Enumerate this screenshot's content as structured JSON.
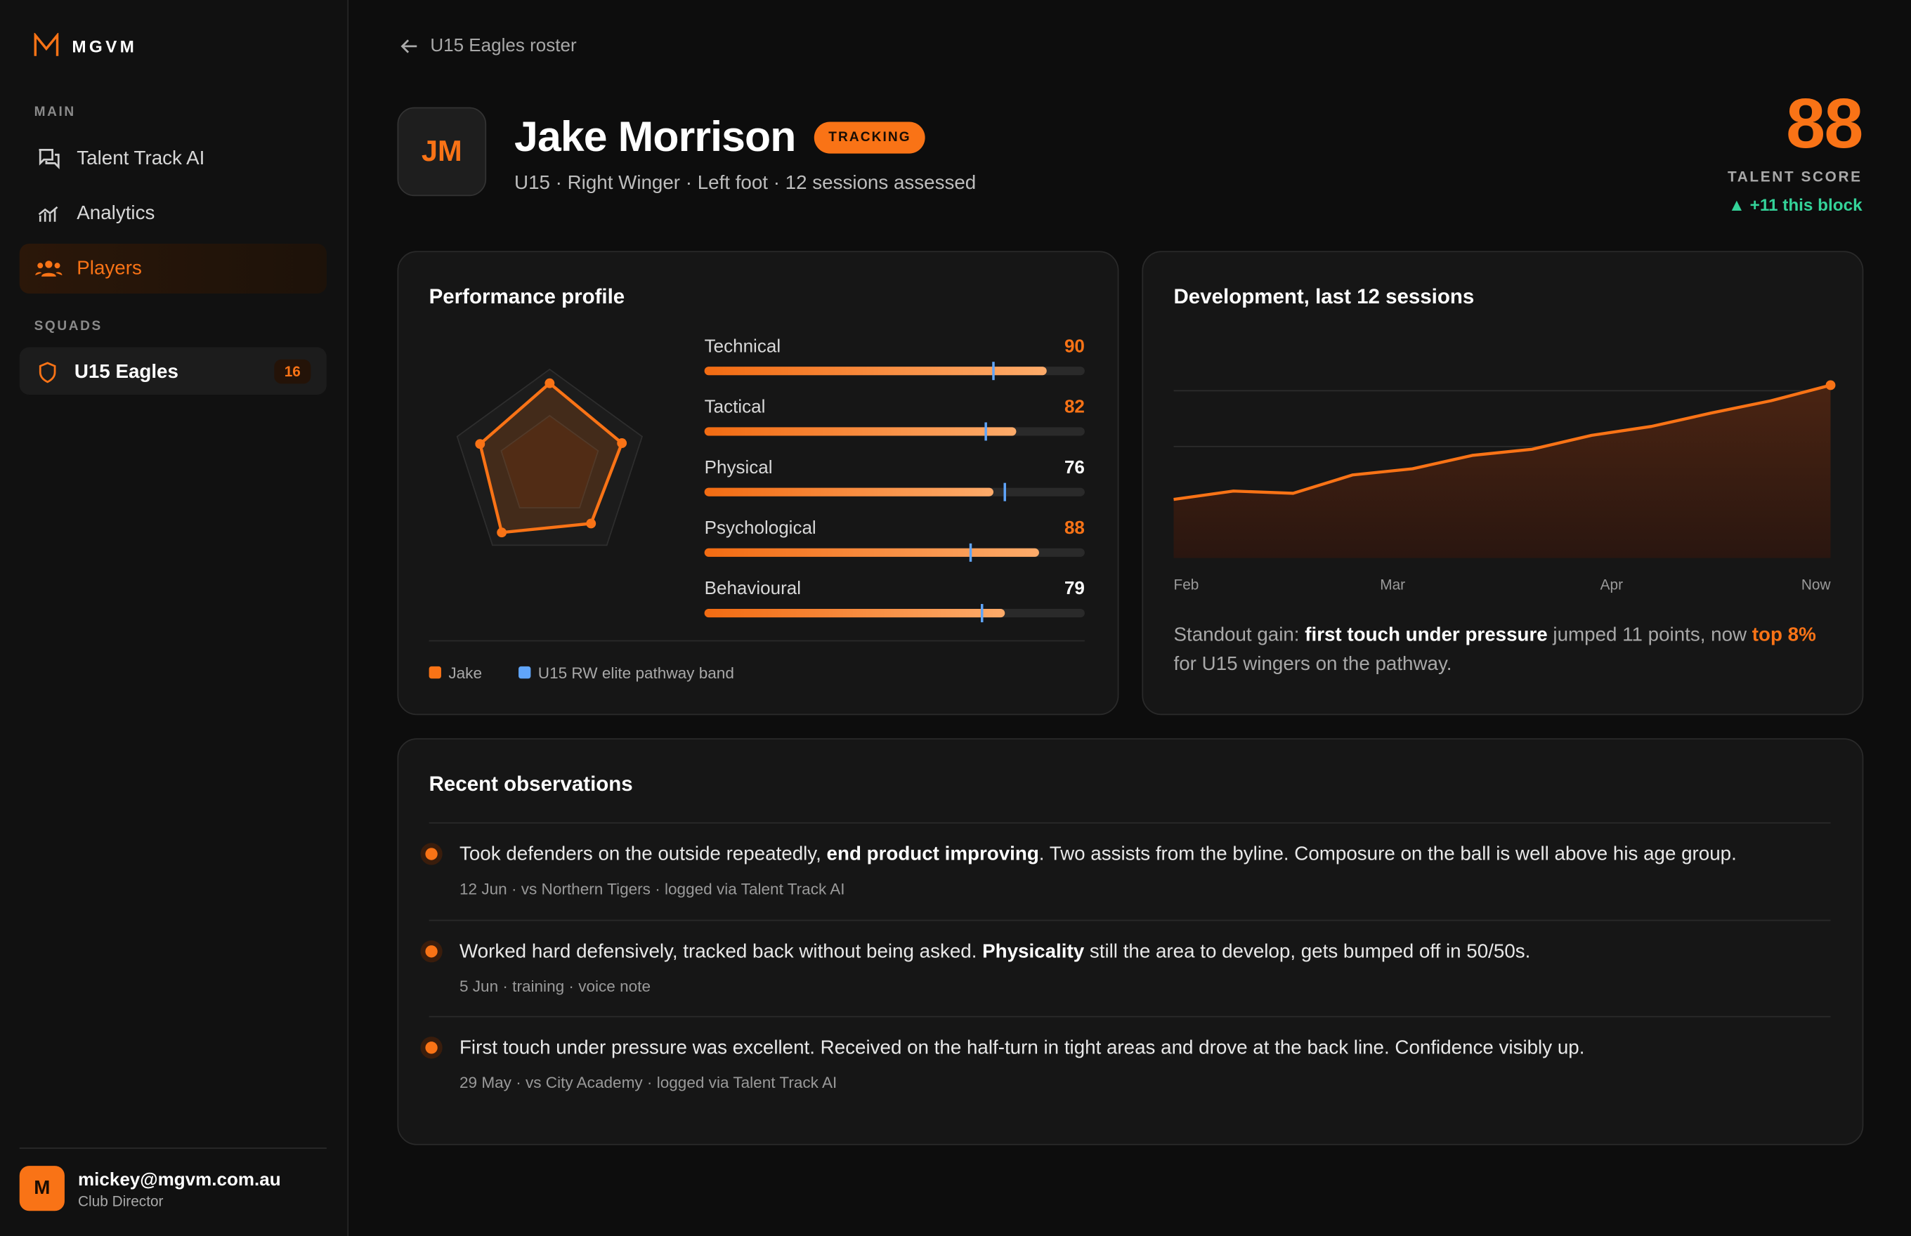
{
  "sidebar": {
    "brand": "MGVM",
    "main_label": "MAIN",
    "nav": [
      "Talent Track AI",
      "Analytics",
      "Players"
    ],
    "squads_label": "SQUADS",
    "squad": {
      "name": "U15 Eagles",
      "count": "16"
    },
    "user": {
      "initial": "M",
      "email": "mickey@mgvm.com.au",
      "role": "Club Director"
    }
  },
  "header": {
    "back": "U15 Eagles roster",
    "initials": "JM",
    "name": "Jake Morrison",
    "badge": "TRACKING",
    "subtitle": "U15 · Right Winger · Left foot · 12 sessions assessed",
    "score": "88",
    "score_label": "TALENT SCORE",
    "score_change": "+11 this block"
  },
  "profile": {
    "title": "Performance profile",
    "scale": [
      0,
      100
    ],
    "metrics": [
      {
        "name": "Technical",
        "value": 90,
        "benchmark": 76,
        "highlight": true
      },
      {
        "name": "Tactical",
        "value": 82,
        "benchmark": 74,
        "highlight": true
      },
      {
        "name": "Physical",
        "value": 76,
        "benchmark": 79,
        "highlight": false
      },
      {
        "name": "Psychological",
        "value": 88,
        "benchmark": 70,
        "highlight": true
      },
      {
        "name": "Behavioural",
        "value": 79,
        "benchmark": 73,
        "highlight": false
      }
    ],
    "legend": [
      {
        "name": "Jake",
        "color": "#f97316"
      },
      {
        "name": "U15 RW elite pathway band",
        "color": "#60a5fa"
      }
    ]
  },
  "development": {
    "type": "line",
    "title": "Development, last 12 sessions",
    "x_labels": [
      "Feb",
      "Mar",
      "Apr",
      "Now"
    ],
    "values": [
      60.5,
      62,
      61.6,
      64.9,
      66,
      68.4,
      69.5,
      72,
      73.6,
      76,
      78.2,
      81
    ],
    "ylim": [
      50,
      90
    ],
    "yticks": [
      50,
      60,
      70,
      80,
      90
    ],
    "grid": true,
    "color": "#f97316",
    "insight": [
      "Standout gain: ",
      "first touch under pressure",
      " jumped 11 points, now ",
      "top 8%",
      " for U15 wingers on the pathway."
    ]
  },
  "observations": {
    "title": "Recent observations",
    "items": [
      {
        "text": [
          "Took defenders on the outside repeatedly, ",
          "end product improving",
          ". Two assists from the byline. Composure on the ball is well above his age group."
        ],
        "meta": "12 Jun · vs Northern Tigers · logged via Talent Track AI"
      },
      {
        "text": [
          "Worked hard defensively, tracked back without being asked. ",
          "Physicality",
          " still the area to develop, gets bumped off in 50/50s."
        ],
        "meta": "5 Jun · training · voice note"
      },
      {
        "text": [
          "First touch under pressure was excellent. Received on the half-turn in tight areas and drove at the back line. Confidence visibly up.",
          "",
          ""
        ],
        "meta": "29 May · vs City Academy · logged via Talent Track AI"
      }
    ]
  }
}
